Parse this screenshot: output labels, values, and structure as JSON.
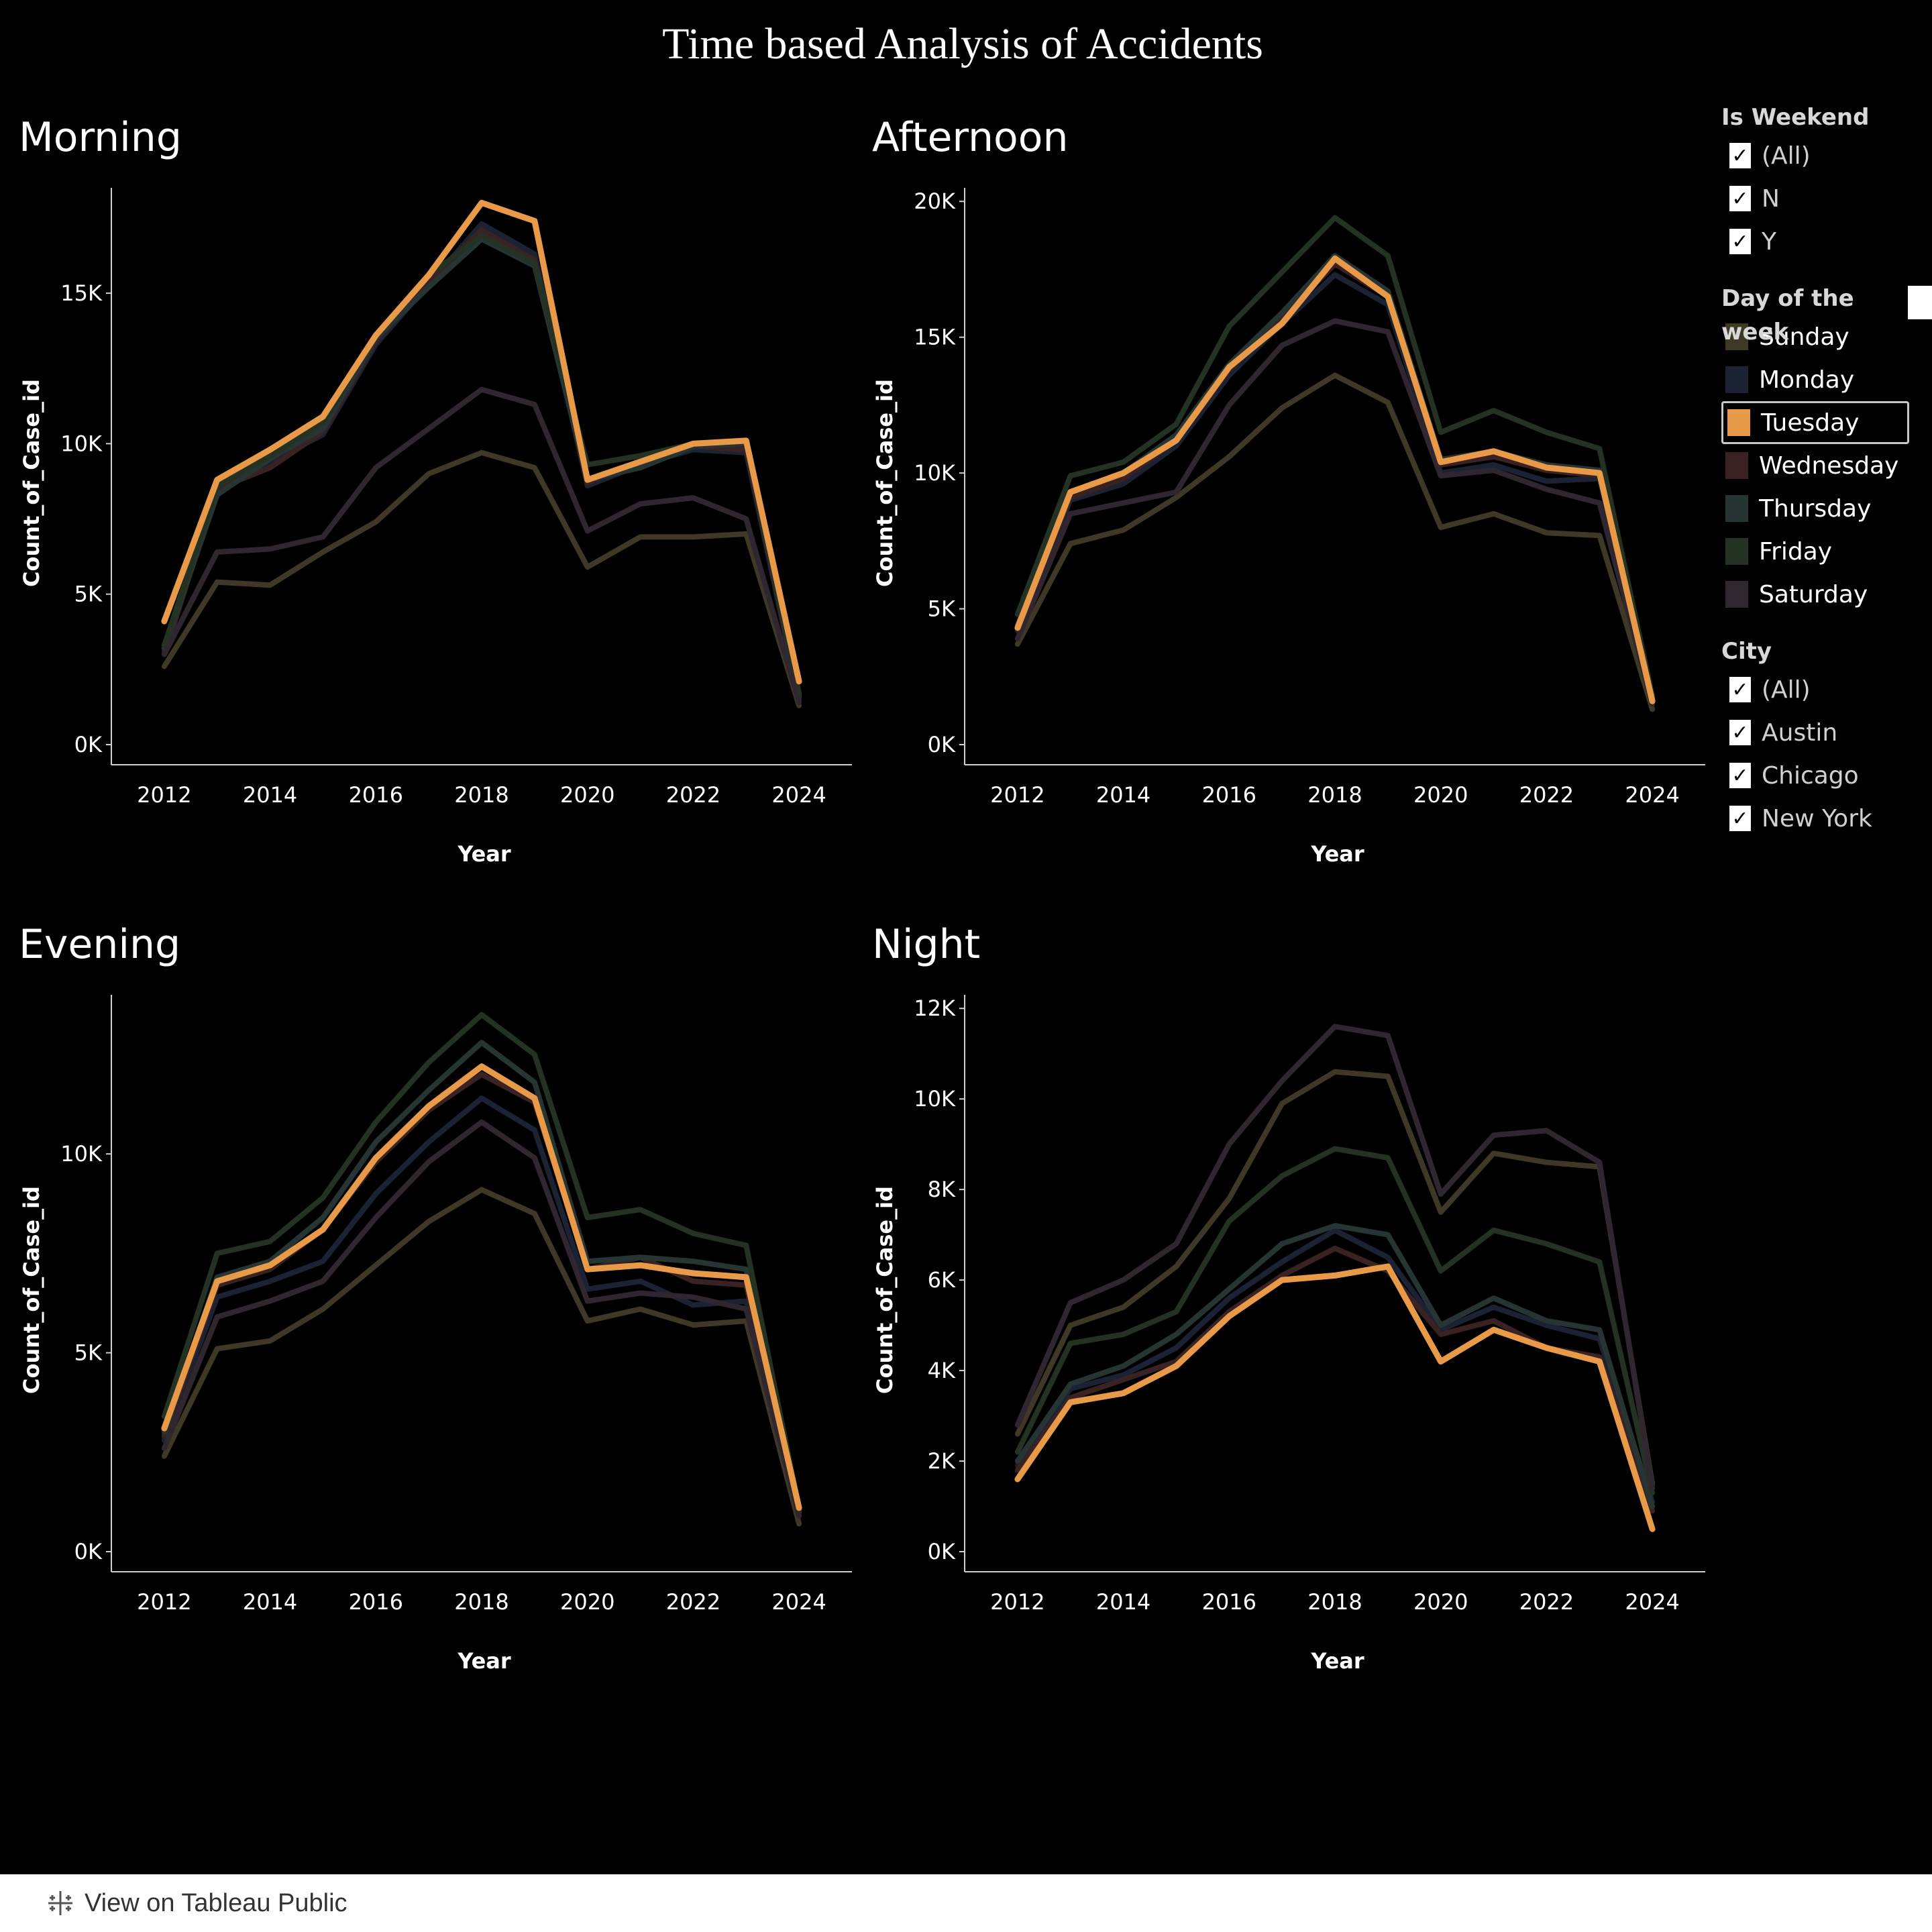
{
  "dashboard_title": "Time based Analysis of Accidents",
  "footer": {
    "link_label": "View on Tableau Public",
    "icon": "tableau-logo-icon"
  },
  "legend": {
    "weekend": {
      "title": "Is Weekend",
      "items": [
        {
          "label": "(All)",
          "checked": true
        },
        {
          "label": "N",
          "checked": true
        },
        {
          "label": "Y",
          "checked": true
        }
      ]
    },
    "days": {
      "title": "Day of the week",
      "items": [
        {
          "label": "Sunday",
          "color": "#3f3826",
          "selected": false
        },
        {
          "label": "Monday",
          "color": "#1a2233",
          "selected": false
        },
        {
          "label": "Tuesday",
          "color": "#e89a48",
          "selected": true
        },
        {
          "label": "Wednesday",
          "color": "#3a2222",
          "selected": false
        },
        {
          "label": "Thursday",
          "color": "#263434",
          "selected": false
        },
        {
          "label": "Friday",
          "color": "#233222",
          "selected": false
        },
        {
          "label": "Saturday",
          "color": "#2f2630",
          "selected": false
        }
      ]
    },
    "city": {
      "title": "City",
      "items": [
        {
          "label": "(All)",
          "checked": true
        },
        {
          "label": "Austin",
          "checked": true
        },
        {
          "label": "Chicago",
          "checked": true
        },
        {
          "label": "New York",
          "checked": true
        }
      ]
    }
  },
  "chart_data": [
    {
      "type": "line",
      "title": "Morning",
      "xlabel": "Year",
      "ylabel": "Count_of_Case_id",
      "x": [
        2012,
        2013,
        2014,
        2015,
        2016,
        2017,
        2018,
        2019,
        2020,
        2021,
        2022,
        2023,
        2024
      ],
      "xticks": [
        "2012",
        "2014",
        "2016",
        "2018",
        "2020",
        "2022",
        "2024"
      ],
      "yticks": [
        "0K",
        "5K",
        "10K",
        "15K"
      ],
      "ylim": [
        0,
        18500
      ],
      "series": [
        {
          "name": "Sunday",
          "values": [
            2600,
            5400,
            5300,
            6400,
            7400,
            9000,
            9700,
            9200,
            5900,
            6900,
            6900,
            7000,
            1300
          ]
        },
        {
          "name": "Monday",
          "values": [
            3100,
            8400,
            9400,
            10300,
            13300,
            15300,
            17300,
            16300,
            8600,
            9300,
            9800,
            9700,
            1500
          ]
        },
        {
          "name": "Wednesday",
          "values": [
            3000,
            8500,
            9200,
            10400,
            13400,
            15400,
            17100,
            16100,
            8700,
            9400,
            9900,
            9800,
            1600
          ]
        },
        {
          "name": "Thursday",
          "values": [
            3200,
            8300,
            9500,
            10500,
            13500,
            15200,
            16800,
            15900,
            8800,
            9200,
            9900,
            10000,
            1600
          ]
        },
        {
          "name": "Friday",
          "values": [
            3300,
            8600,
            9600,
            10700,
            13600,
            15600,
            16900,
            16000,
            9300,
            9600,
            10000,
            10100,
            1700
          ]
        },
        {
          "name": "Saturday",
          "values": [
            3000,
            6400,
            6500,
            6900,
            9200,
            10500,
            11800,
            11300,
            7100,
            8000,
            8200,
            7500,
            1400
          ]
        },
        {
          "name": "Tuesday",
          "values": [
            4100,
            8800,
            9800,
            10900,
            13600,
            15600,
            18000,
            17400,
            8800,
            9400,
            10000,
            10100,
            2100
          ]
        }
      ]
    },
    {
      "type": "line",
      "title": "Afternoon",
      "xlabel": "Year",
      "ylabel": "Count_of_Case_id",
      "x": [
        2012,
        2013,
        2014,
        2015,
        2016,
        2017,
        2018,
        2019,
        2020,
        2021,
        2022,
        2023,
        2024
      ],
      "xticks": [
        "2012",
        "2014",
        "2016",
        "2018",
        "2020",
        "2022",
        "2024"
      ],
      "yticks": [
        "0K",
        "5K",
        "10K",
        "15K",
        "20K"
      ],
      "ylim": [
        0,
        20500
      ],
      "series": [
        {
          "name": "Sunday",
          "values": [
            3700,
            7400,
            7900,
            9100,
            10600,
            12400,
            13600,
            12600,
            8000,
            8500,
            7800,
            7700,
            1300
          ]
        },
        {
          "name": "Monday",
          "values": [
            4200,
            9000,
            9600,
            11000,
            13600,
            15500,
            17300,
            16200,
            10000,
            10300,
            9700,
            9800,
            1600
          ]
        },
        {
          "name": "Wednesday",
          "values": [
            4300,
            9100,
            9800,
            11200,
            13800,
            15700,
            17700,
            16500,
            10300,
            10600,
            10100,
            9900,
            1700
          ]
        },
        {
          "name": "Thursday",
          "values": [
            4400,
            9300,
            10000,
            11400,
            14000,
            15900,
            18000,
            16700,
            10500,
            10800,
            10300,
            10100,
            1700
          ]
        },
        {
          "name": "Friday",
          "values": [
            4800,
            9900,
            10400,
            11800,
            15400,
            17400,
            19400,
            18000,
            11500,
            12300,
            11500,
            10900,
            1800
          ]
        },
        {
          "name": "Saturday",
          "values": [
            3900,
            8500,
            8900,
            9300,
            12500,
            14700,
            15600,
            15200,
            9900,
            10100,
            9400,
            8900,
            1500
          ]
        },
        {
          "name": "Tuesday",
          "values": [
            4300,
            9300,
            10000,
            11200,
            13900,
            15500,
            17900,
            16500,
            10400,
            10800,
            10200,
            10000,
            1600
          ]
        }
      ]
    },
    {
      "type": "line",
      "title": "Evening",
      "xlabel": "Year",
      "ylabel": "Count_of_Case_id",
      "x": [
        2012,
        2013,
        2014,
        2015,
        2016,
        2017,
        2018,
        2019,
        2020,
        2021,
        2022,
        2023,
        2024
      ],
      "xticks": [
        "2012",
        "2014",
        "2016",
        "2018",
        "2020",
        "2022",
        "2024"
      ],
      "yticks": [
        "0K",
        "5K",
        "10K"
      ],
      "ylim": [
        0,
        14000
      ],
      "series": [
        {
          "name": "Sunday",
          "values": [
            2400,
            5100,
            5300,
            6100,
            7200,
            8300,
            9100,
            8500,
            5800,
            6100,
            5700,
            5800,
            700
          ]
        },
        {
          "name": "Monday",
          "values": [
            2800,
            6400,
            6800,
            7300,
            9000,
            10300,
            11400,
            10600,
            6600,
            6800,
            6200,
            6300,
            900
          ]
        },
        {
          "name": "Wednesday",
          "values": [
            2900,
            6700,
            7100,
            8100,
            9800,
            11100,
            12000,
            11300,
            7100,
            7400,
            6800,
            6700,
            1000
          ]
        },
        {
          "name": "Thursday",
          "values": [
            3000,
            6900,
            7300,
            8400,
            10300,
            11600,
            12800,
            11800,
            7300,
            7400,
            7300,
            7100,
            1000
          ]
        },
        {
          "name": "Friday",
          "values": [
            3400,
            7500,
            7800,
            8900,
            10800,
            12300,
            13500,
            12500,
            8400,
            8600,
            8000,
            7700,
            1100
          ]
        },
        {
          "name": "Saturday",
          "values": [
            2600,
            5900,
            6300,
            6800,
            8400,
            9800,
            10800,
            9900,
            6300,
            6500,
            6400,
            6100,
            900
          ]
        },
        {
          "name": "Tuesday",
          "values": [
            3100,
            6800,
            7200,
            8100,
            9900,
            11200,
            12200,
            11400,
            7100,
            7200,
            7000,
            6900,
            1100
          ]
        }
      ]
    },
    {
      "type": "line",
      "title": "Night",
      "xlabel": "Year",
      "ylabel": "Count_of_Case_id",
      "x": [
        2012,
        2013,
        2014,
        2015,
        2016,
        2017,
        2018,
        2019,
        2020,
        2021,
        2022,
        2023,
        2024
      ],
      "xticks": [
        "2012",
        "2014",
        "2016",
        "2018",
        "2020",
        "2022",
        "2024"
      ],
      "yticks": [
        "0K",
        "2K",
        "4K",
        "6K",
        "8K",
        "10K",
        "12K"
      ],
      "ylim": [
        0,
        12300
      ],
      "series": [
        {
          "name": "Sunday",
          "values": [
            2600,
            5000,
            5400,
            6300,
            7800,
            9900,
            10600,
            10500,
            7500,
            8800,
            8600,
            8500,
            1500
          ]
        },
        {
          "name": "Monday",
          "values": [
            1900,
            3600,
            3900,
            4500,
            5600,
            6400,
            7100,
            6500,
            4900,
            5400,
            5000,
            4700,
            1100
          ]
        },
        {
          "name": "Wednesday",
          "values": [
            1800,
            3400,
            3800,
            4200,
            5300,
            6100,
            6700,
            6200,
            4800,
            5100,
            4500,
            4300,
            900
          ]
        },
        {
          "name": "Thursday",
          "values": [
            2000,
            3700,
            4100,
            4800,
            5800,
            6800,
            7200,
            7000,
            5000,
            5600,
            5100,
            4900,
            1000
          ]
        },
        {
          "name": "Friday",
          "values": [
            2200,
            4600,
            4800,
            5300,
            7300,
            8300,
            8900,
            8700,
            6200,
            7100,
            6800,
            6400,
            1300
          ]
        },
        {
          "name": "Saturday",
          "values": [
            2800,
            5500,
            6000,
            6800,
            9000,
            10400,
            11600,
            11400,
            7900,
            9200,
            9300,
            8600,
            1400
          ]
        },
        {
          "name": "Tuesday",
          "values": [
            1600,
            3300,
            3500,
            4100,
            5200,
            6000,
            6100,
            6300,
            4200,
            4900,
            4500,
            4200,
            500
          ]
        }
      ]
    }
  ]
}
